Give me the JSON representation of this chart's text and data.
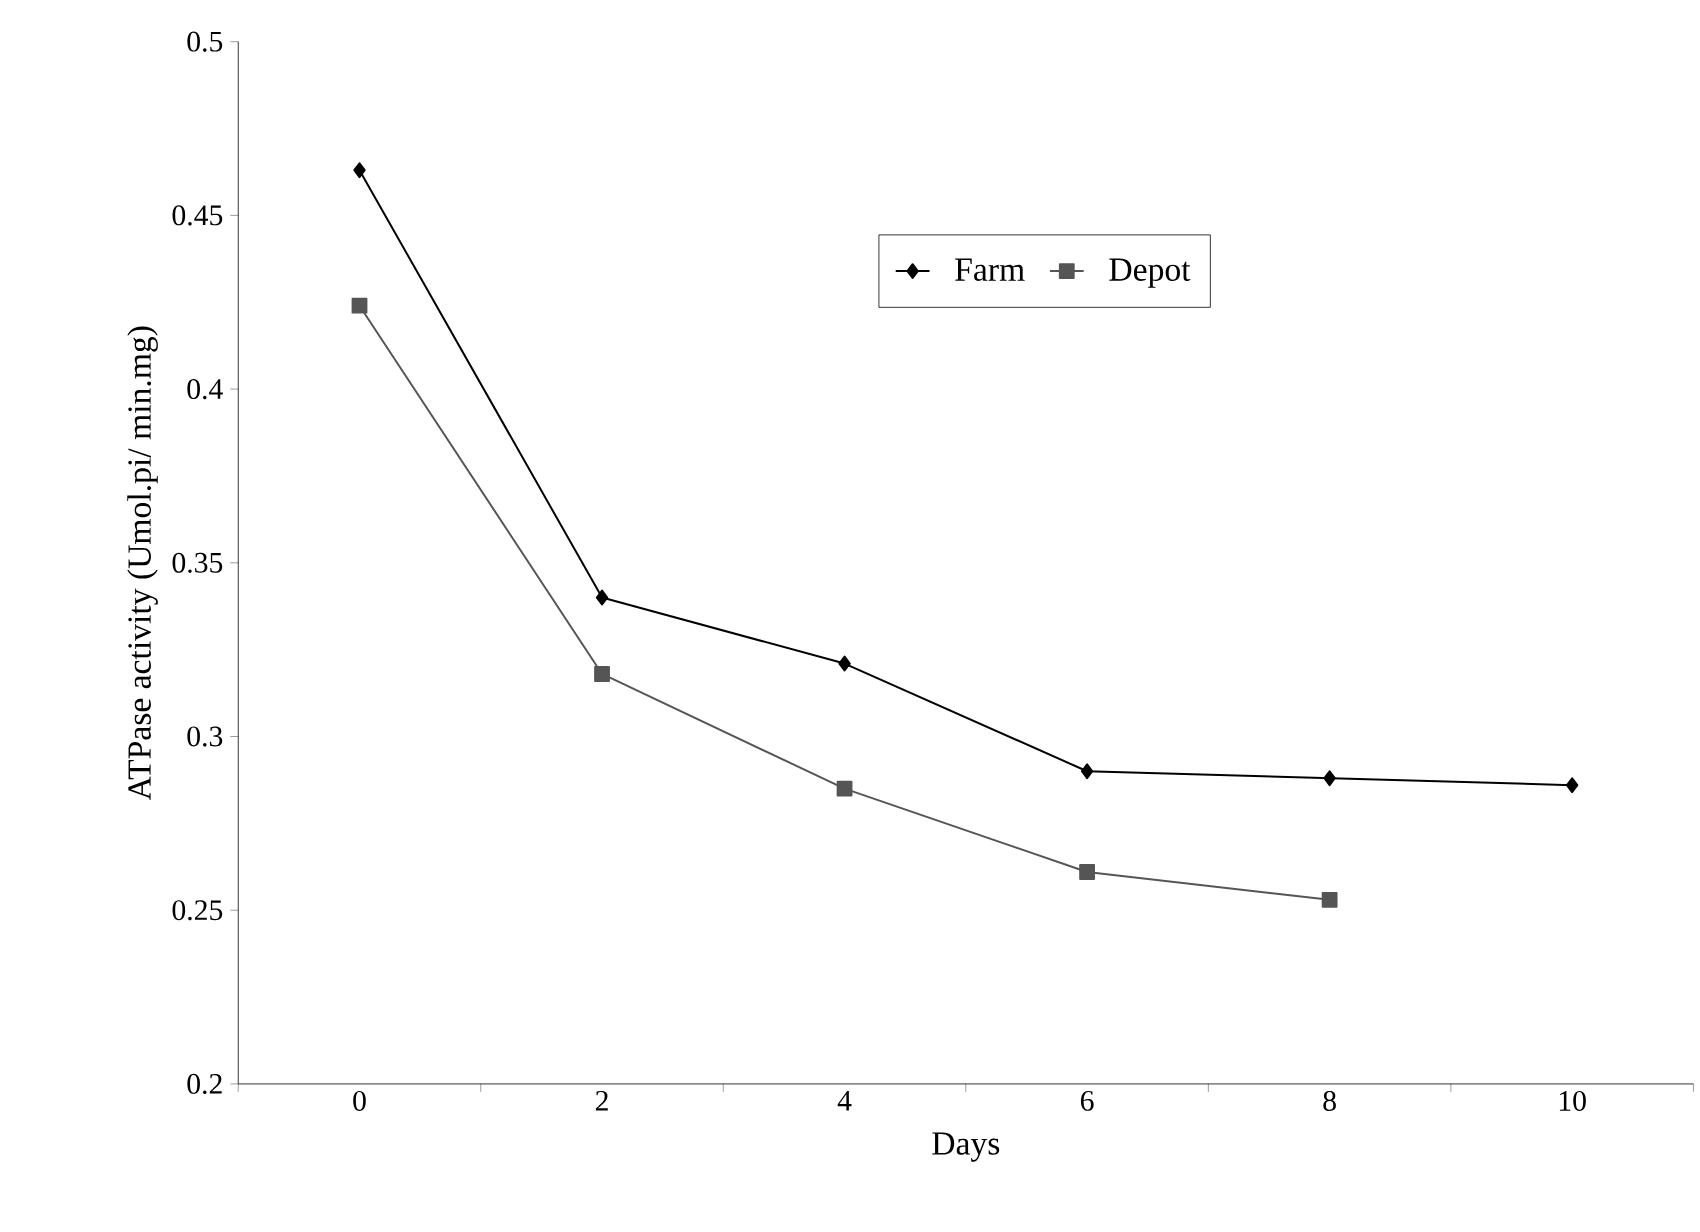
{
  "chart_data": {
    "type": "line",
    "xlabel": "Days",
    "ylabel": "ATPase activity (Umol.pi/ min.mg)",
    "categories": [
      "0",
      "2",
      "4",
      "6",
      "8",
      "10"
    ],
    "series": [
      {
        "name": "Farm",
        "color": "#000000",
        "marker": "diamond",
        "values": [
          0.463,
          0.34,
          0.321,
          0.29,
          0.288,
          0.286
        ]
      },
      {
        "name": "Depot",
        "color": "#555555",
        "marker": "square",
        "values": [
          0.424,
          0.318,
          0.285,
          0.261,
          0.253,
          null
        ]
      }
    ],
    "ylim": [
      0.2,
      0.5
    ],
    "yticks": [
      0.2,
      0.25,
      0.3,
      0.35,
      0.4,
      0.45,
      0.5
    ],
    "legend": "top right",
    "grid": false,
    "line_style": "solid"
  }
}
